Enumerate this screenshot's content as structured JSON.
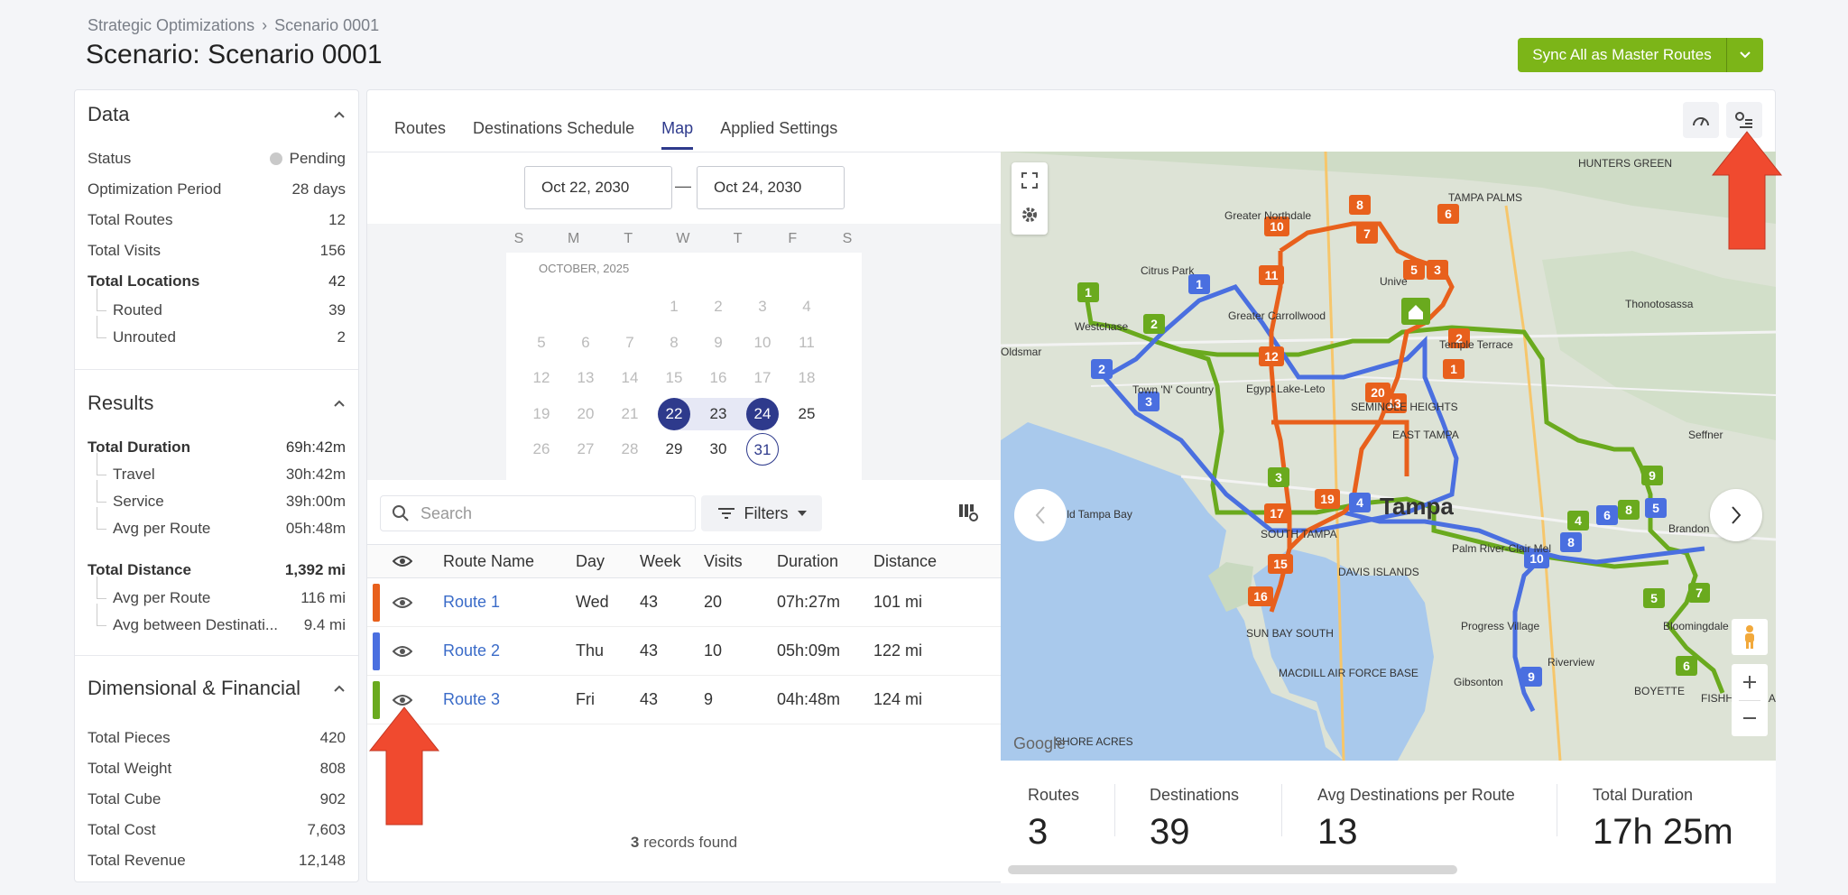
{
  "breadcrumb": {
    "parent": "Strategic Optimizations",
    "sep": "›",
    "current": "Scenario 0001"
  },
  "page_title": "Scenario: Scenario 0001",
  "sync_button": {
    "label": "Sync All as Master Routes"
  },
  "data_section": {
    "title": "Data",
    "status_label": "Status",
    "status_value": "Pending",
    "period_label": "Optimization Period",
    "period_value": "28 days",
    "routes_label": "Total Routes",
    "routes_value": "12",
    "visits_label": "Total Visits",
    "visits_value": "156",
    "locations_label": "Total Locations",
    "locations_value": "42",
    "routed_label": "Routed",
    "routed_value": "39",
    "unrouted_label": "Unrouted",
    "unrouted_value": "2"
  },
  "results_section": {
    "title": "Results",
    "duration_label": "Total Duration",
    "duration_value": "69h:42m",
    "travel_label": "Travel",
    "travel_value": "30h:42m",
    "service_label": "Service",
    "service_value": "39h:00m",
    "avg_route_label": "Avg per Route",
    "avg_route_value": "05h:48m",
    "distance_label": "Total Distance",
    "distance_value": "1,392 mi",
    "avg_dist_label": "Avg per Route",
    "avg_dist_value": "116 mi",
    "avg_between_label": "Avg between Destinati...",
    "avg_between_value": "9.4 mi"
  },
  "dimensional_section": {
    "title": "Dimensional & Financial",
    "pieces_label": "Total Pieces",
    "pieces_value": "420",
    "weight_label": "Total Weight",
    "weight_value": "808",
    "cube_label": "Total Cube",
    "cube_value": "902",
    "cost_label": "Total Cost",
    "cost_value": "7,603",
    "revenue_label": "Total Revenue",
    "revenue_value": "12,148"
  },
  "tabs": [
    "Routes",
    "Destinations Schedule",
    "Map",
    "Applied Settings"
  ],
  "date_range": {
    "start": "Oct 22, 2030",
    "dash": "—",
    "end": "Oct 24, 2030"
  },
  "calendar": {
    "weekdays": [
      "S",
      "M",
      "T",
      "W",
      "T",
      "F",
      "S"
    ],
    "month_label": "OCTOBER, 2025"
  },
  "search": {
    "placeholder": "Search"
  },
  "filters_label": "Filters",
  "table": {
    "headers": {
      "name": "Route Name",
      "day": "Day",
      "week": "Week",
      "visits": "Visits",
      "duration": "Duration",
      "distance": "Distance"
    },
    "rows": [
      {
        "name": "Route 1",
        "day": "Wed",
        "week": "43",
        "visits": "20",
        "duration": "07h:27m",
        "distance": "101 mi",
        "color": "#e8601c"
      },
      {
        "name": "Route 2",
        "day": "Thu",
        "week": "43",
        "visits": "10",
        "duration": "05h:09m",
        "distance": "122 mi",
        "color": "#4a6fe0"
      },
      {
        "name": "Route 3",
        "day": "Fri",
        "week": "43",
        "visits": "9",
        "duration": "04h:48m",
        "distance": "124 mi",
        "color": "#6aaa1e"
      }
    ],
    "records_count": "3",
    "records_label": "records found"
  },
  "map": {
    "labels": {
      "hunters_green": "HUNTERS GREEN",
      "greater_northdale": "Greater Northdale",
      "tampa_palms": "TAMPA PALMS",
      "citrus_park": "Citrus Park",
      "university": "Unive",
      "thonotosassa": "Thonotosassa",
      "westchase": "Westchase",
      "greater_carrollwood": "Greater Carrollwood",
      "temple_terrace": "Temple Terrace",
      "oldsmar": "Oldsmar",
      "egypt_lake": "Egypt Lake-Leto",
      "town_n_country": "Town 'N' Country",
      "seminole_heights": "SEMINOLE HEIGHTS",
      "east_tampa": "EAST TAMPA",
      "seffner": "Seffner",
      "old_tampa_bay": "Old Tampa Bay",
      "tampa": "Tampa",
      "palm_river": "Palm River-Clair Mel",
      "brandon": "Brandon",
      "davis_islands": "DAVIS ISLANDS",
      "south_tampa": "SOUTH TAMPA",
      "progress_village": "Progress Village",
      "bloomingdale": "Bloomingdale",
      "sun_bay_south": "SUN BAY SOUTH",
      "riverview": "Riverview",
      "macdill": "MACDILL AIR FORCE BASE",
      "gibsonton": "Gibsonton",
      "boyette": "BOYETTE",
      "fishhawk": "FISHHAWK RANCH",
      "shore_acres": "SHORE ACRES",
      "google": "Google"
    }
  },
  "stats": {
    "routes_label": "Routes",
    "routes_value": "3",
    "destinations_label": "Destinations",
    "destinations_value": "39",
    "avg_label": "Avg Destinations per Route",
    "avg_value": "13",
    "duration_label": "Total Duration",
    "duration_value": "17h 25m"
  },
  "colors": {
    "accent": "#2e3a8c",
    "sync_green": "#7cb518",
    "route1": "#e8601c",
    "route2": "#4a6fe0",
    "route3": "#6aaa1e",
    "callout": "#f04a2f"
  }
}
